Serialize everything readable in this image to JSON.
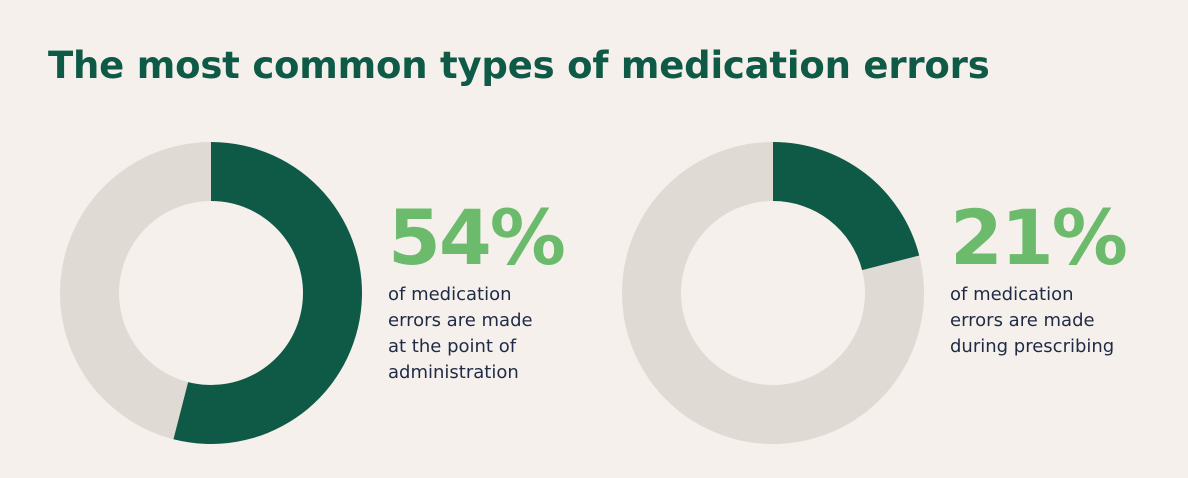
{
  "title": "The most common types of medication errors",
  "colors": {
    "background": "#f5f0eb",
    "title": "#0e5a47",
    "highlight": "#0e5a47",
    "remainder": "#e0dad5",
    "stat": "#6cbb6c",
    "text": "#1f2a44"
  },
  "chart_data": [
    {
      "type": "pie",
      "variant": "donut",
      "percent": 54,
      "label": "54%",
      "description": "of medication\nerrors are made\nat the point of\nadministration"
    },
    {
      "type": "pie",
      "variant": "donut",
      "percent": 21,
      "label": "21%",
      "description": "of medication\nerrors are made\nduring prescribing"
    }
  ]
}
